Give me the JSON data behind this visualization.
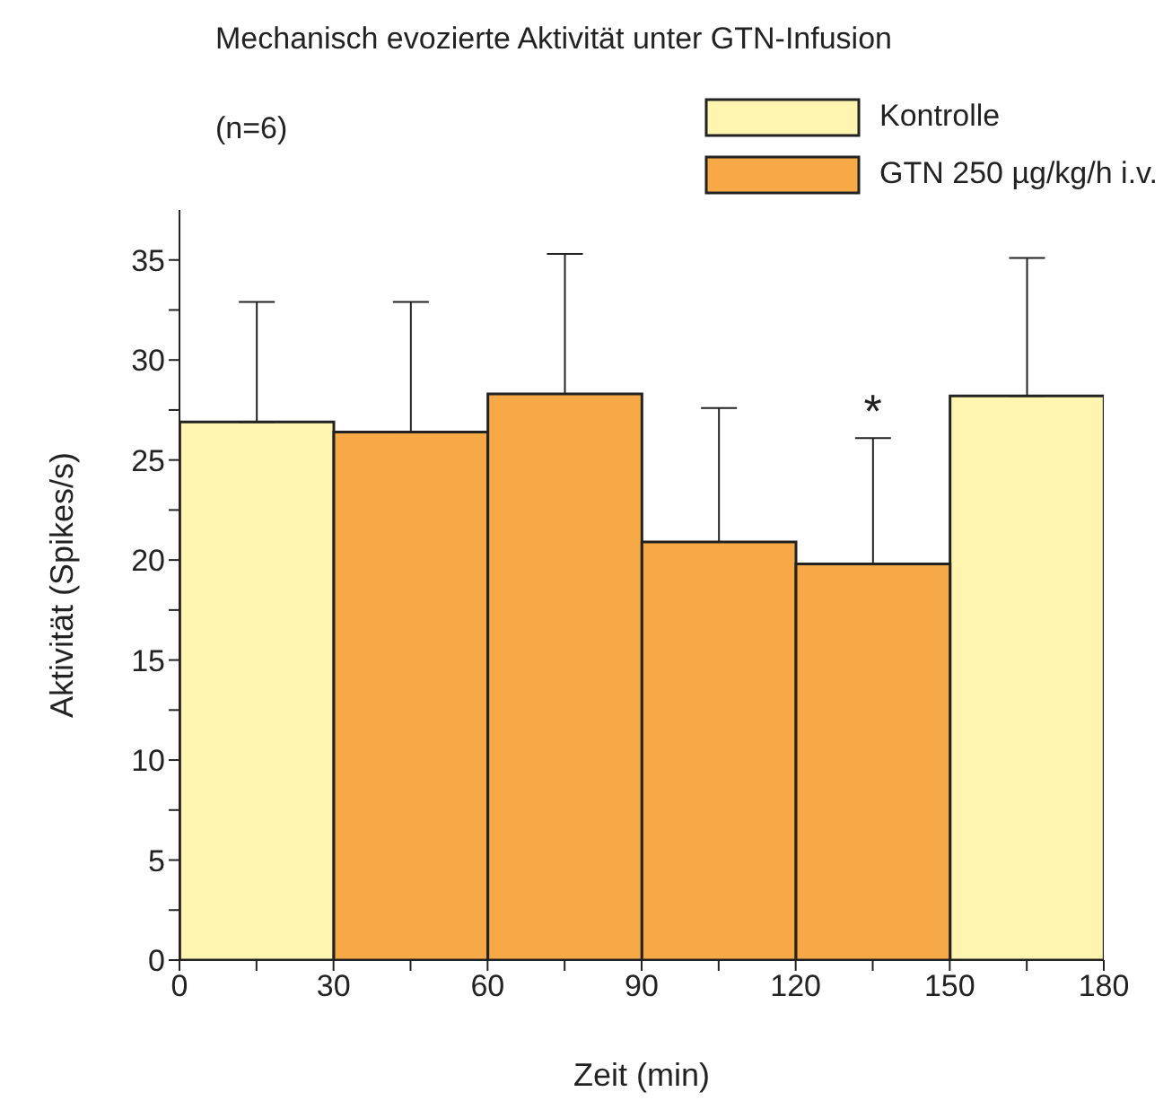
{
  "chart_data": {
    "type": "bar",
    "title": "Mechanisch evozierte Aktivität unter GTN-Infusion",
    "subtitle": "(n=6)",
    "xlabel": "Zeit (min)",
    "ylabel": "Aktivität (Spikes/s)",
    "x": [
      15,
      45,
      75,
      105,
      135,
      165
    ],
    "series": [
      {
        "name": "Kontrolle",
        "color": "#fff5b0",
        "values": [
          26.9,
          null,
          null,
          null,
          null,
          28.2
        ],
        "errors": [
          [
            26.9,
            32.9
          ],
          null,
          null,
          null,
          null,
          [
            28.2,
            35.1
          ]
        ]
      },
      {
        "name": "GTN 250 µg/kg/h i.v.",
        "color": "#f7a948",
        "values": [
          null,
          26.4,
          28.3,
          20.9,
          19.8,
          null
        ],
        "errors": [
          null,
          [
            26.4,
            32.9
          ],
          [
            28.3,
            35.3
          ],
          [
            20.9,
            27.6
          ],
          [
            19.8,
            26.1
          ],
          null
        ]
      }
    ],
    "stacked": true,
    "xlim": [
      0,
      180
    ],
    "xticks": [
      0,
      {
        "value": 15,
        "label": null
      },
      30,
      {
        "value": 45,
        "label": null
      },
      60,
      {
        "value": 75,
        "label": null
      },
      90,
      {
        "value": 105,
        "label": null
      },
      120,
      {
        "value": 135,
        "label": null
      },
      150,
      {
        "value": 165,
        "label": null
      },
      180
    ],
    "ylim": [
      0,
      37.5
    ],
    "yticks": [
      0,
      {
        "value": 2.5,
        "label": null
      },
      5,
      {
        "value": 7.5,
        "label": null
      },
      10,
      {
        "value": 12.5,
        "label": null
      },
      15,
      {
        "value": 17.5,
        "label": null
      },
      20,
      {
        "value": 22.5,
        "label": null
      },
      25,
      {
        "value": 27.5,
        "label": null
      },
      30,
      {
        "value": 32.5,
        "label": null
      },
      35
    ],
    "annotations": [
      {
        "text": "*",
        "x": 135,
        "y": 26.1
      }
    ],
    "legend": "top right",
    "grid": false
  }
}
